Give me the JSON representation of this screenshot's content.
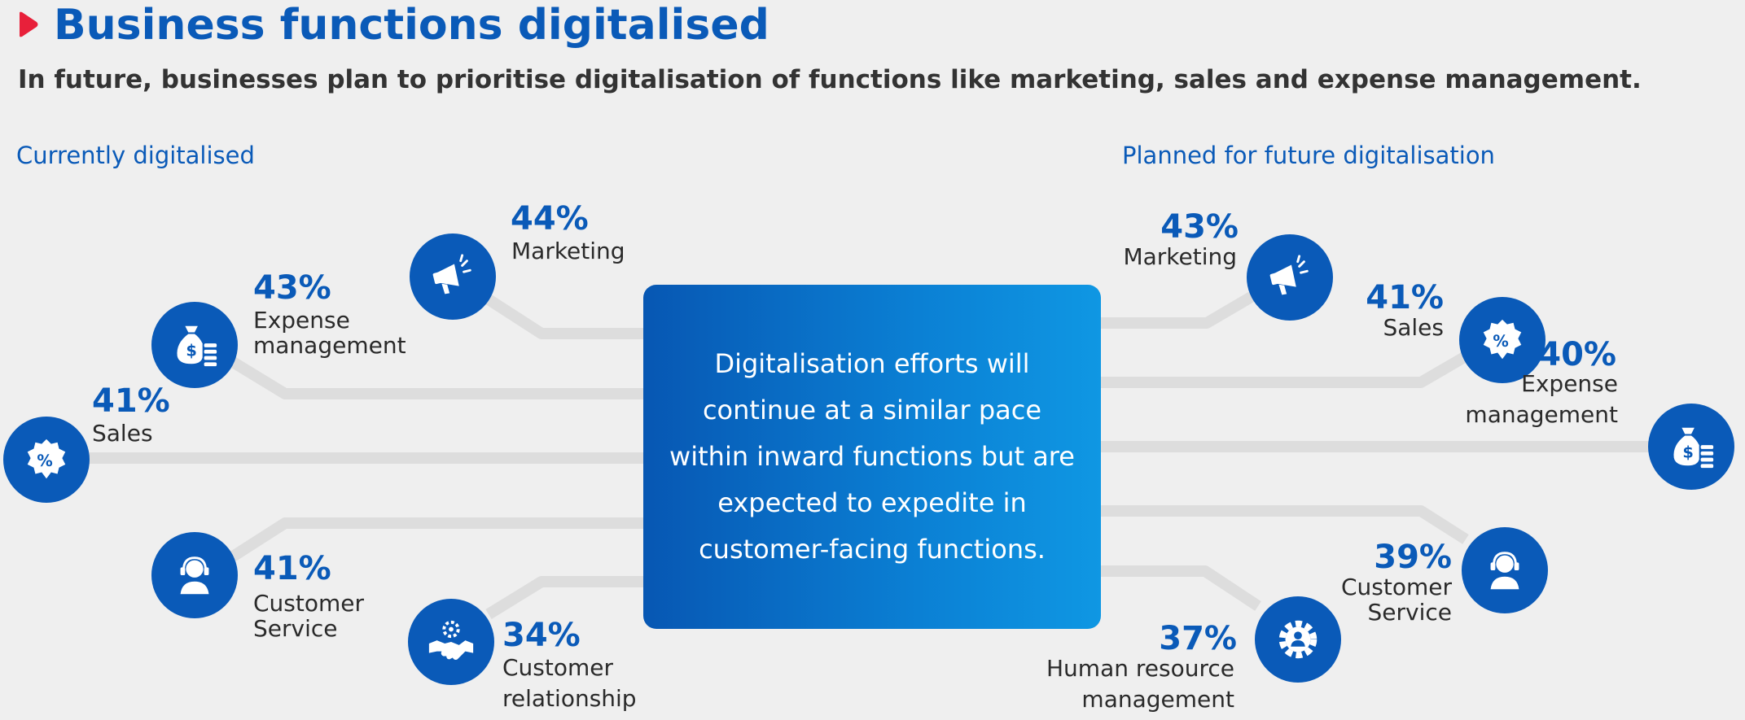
{
  "header": {
    "title": "Business functions digitalised",
    "subtitle": "In future, businesses plan to prioritise digitalisation of functions like marketing, sales and expense management."
  },
  "colors": {
    "accent": "#0a5ab8",
    "marker": "#e8203a",
    "connector": "#dddddd"
  },
  "current": {
    "heading": "Currently digitalised",
    "items": [
      {
        "pct": "44%",
        "label": [
          "Marketing"
        ],
        "icon": "megaphone-icon"
      },
      {
        "pct": "43%",
        "label": [
          "Expense",
          "management"
        ],
        "icon": "money-bag-icon"
      },
      {
        "pct": "41%",
        "label": [
          "Sales"
        ],
        "icon": "discount-badge-icon"
      },
      {
        "pct": "41%",
        "label": [
          "Customer",
          "Service"
        ],
        "icon": "headset-agent-icon"
      },
      {
        "pct": "34%",
        "label": [
          "Customer",
          "relationship"
        ],
        "icon": "handshake-gear-icon"
      }
    ]
  },
  "future": {
    "heading": "Planned for future digitalisation",
    "items": [
      {
        "pct": "43%",
        "label": [
          "Marketing"
        ],
        "icon": "megaphone-icon"
      },
      {
        "pct": "41%",
        "label": [
          "Sales"
        ],
        "icon": "discount-badge-icon"
      },
      {
        "pct": "40%",
        "label": [
          "Expense",
          "management"
        ],
        "icon": "money-bag-icon"
      },
      {
        "pct": "39%",
        "label": [
          "Customer",
          "Service"
        ],
        "icon": "headset-agent-icon"
      },
      {
        "pct": "37%",
        "label": [
          "Human resource",
          "management"
        ],
        "icon": "gear-person-icon"
      }
    ]
  },
  "center": {
    "text": "Digitalisation efforts will continue at a similar pace within inward functions but are expected to expedite in customer-facing functions."
  }
}
